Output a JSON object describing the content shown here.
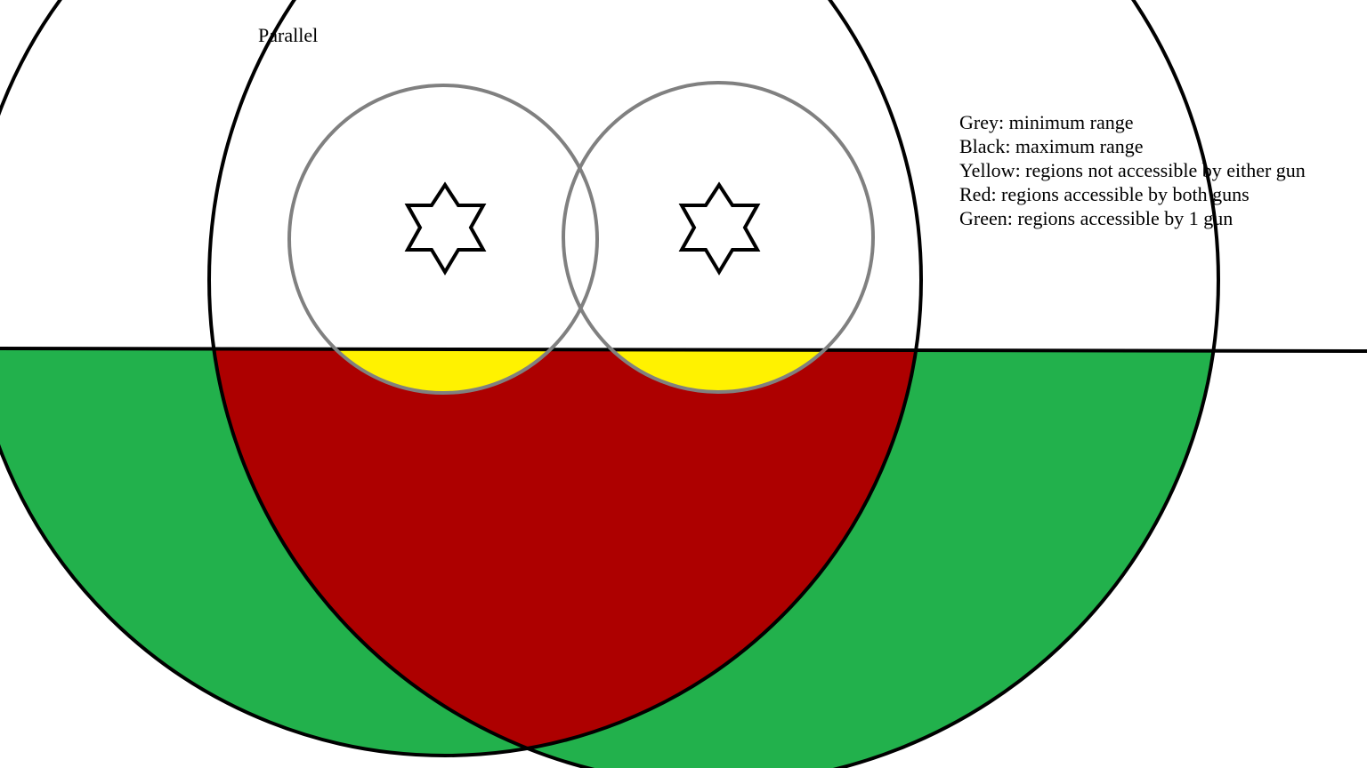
{
  "title": "Parallel",
  "legend": [
    {
      "key": "grey",
      "text": "Grey: minimum range"
    },
    {
      "key": "black",
      "text": "Black: maximum range"
    },
    {
      "key": "yellow",
      "text": "Yellow: regions not accessible by either gun"
    },
    {
      "key": "red",
      "text": "Red: regions accessible by both guns"
    },
    {
      "key": "green",
      "text": "Green: regions accessible by 1 gun"
    }
  ],
  "colors": {
    "background": "#ffffff",
    "min_range": "#808080",
    "max_range": "#000000",
    "not_accessible": "#fff200",
    "both_guns": "#ad0000",
    "one_gun": "#22b14c",
    "star_fill": "#ffffff",
    "star_stroke": "#000000"
  },
  "guns": [
    {
      "name": "left-gun",
      "icon": "star-of-david-icon"
    },
    {
      "name": "right-gun",
      "icon": "star-of-david-icon"
    }
  ]
}
